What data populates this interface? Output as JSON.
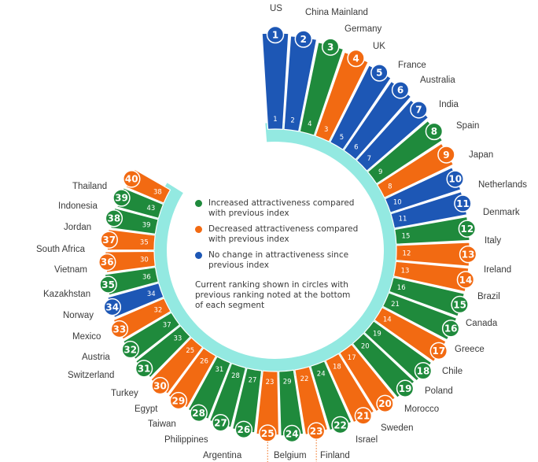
{
  "chart_data": {
    "type": "radial-bar",
    "colors": {
      "increased": "#1f8a3c",
      "decreased": "#f26a12",
      "no_change": "#1d57b5",
      "ring": "#93e9e1"
    },
    "legend": {
      "increased": "Increased attractiveness compared with previous index",
      "decreased": "Decreased attractiveness compared with previous index",
      "no_change": "No change in attractiveness since previous index",
      "note": "Current ranking shown in circles with previous ranking noted at the bottom of each segment"
    },
    "items": [
      {
        "rank": 1,
        "country": "US",
        "previous": 1,
        "status": "no_change"
      },
      {
        "rank": 2,
        "country": "China Mainland",
        "previous": 2,
        "status": "no_change"
      },
      {
        "rank": 3,
        "country": "Germany",
        "previous": 4,
        "status": "increased"
      },
      {
        "rank": 4,
        "country": "UK",
        "previous": 3,
        "status": "decreased"
      },
      {
        "rank": 5,
        "country": "France",
        "previous": 5,
        "status": "no_change"
      },
      {
        "rank": 6,
        "country": "Australia",
        "previous": 6,
        "status": "no_change"
      },
      {
        "rank": 7,
        "country": "India",
        "previous": 7,
        "status": "no_change"
      },
      {
        "rank": 8,
        "country": "Spain",
        "previous": 9,
        "status": "increased"
      },
      {
        "rank": 9,
        "country": "Japan",
        "previous": 8,
        "status": "decreased"
      },
      {
        "rank": 10,
        "country": "Netherlands",
        "previous": 10,
        "status": "no_change"
      },
      {
        "rank": 11,
        "country": "Denmark",
        "previous": 11,
        "status": "no_change"
      },
      {
        "rank": 12,
        "country": "Italy",
        "previous": 15,
        "status": "increased"
      },
      {
        "rank": 13,
        "country": "Ireland",
        "previous": 12,
        "status": "decreased"
      },
      {
        "rank": 14,
        "country": "Brazil",
        "previous": 13,
        "status": "decreased"
      },
      {
        "rank": 15,
        "country": "Canada",
        "previous": 16,
        "status": "increased"
      },
      {
        "rank": 16,
        "country": "Greece",
        "previous": 21,
        "status": "increased"
      },
      {
        "rank": 17,
        "country": "Chile",
        "previous": 14,
        "status": "decreased"
      },
      {
        "rank": 18,
        "country": "Poland",
        "previous": 19,
        "status": "increased"
      },
      {
        "rank": 19,
        "country": "Morocco",
        "previous": 20,
        "status": "increased"
      },
      {
        "rank": 20,
        "country": "Sweden",
        "previous": 17,
        "status": "decreased"
      },
      {
        "rank": 21,
        "country": "Israel",
        "previous": 18,
        "status": "decreased"
      },
      {
        "rank": 22,
        "country": "Finland",
        "previous": 24,
        "status": "increased"
      },
      {
        "rank": 23,
        "country": "",
        "previous": 22,
        "status": "decreased"
      },
      {
        "rank": 24,
        "country": "Belgium",
        "previous": 29,
        "status": "increased"
      },
      {
        "rank": 25,
        "country": "",
        "previous": 23,
        "status": "decreased"
      },
      {
        "rank": 26,
        "country": "Argentina",
        "previous": 27,
        "status": "increased"
      },
      {
        "rank": 27,
        "country": "Philippines",
        "previous": 28,
        "status": "increased"
      },
      {
        "rank": 28,
        "country": "Taiwan",
        "previous": 31,
        "status": "increased"
      },
      {
        "rank": 29,
        "country": "Egypt",
        "previous": 26,
        "status": "decreased"
      },
      {
        "rank": 30,
        "country": "Turkey",
        "previous": 25,
        "status": "decreased"
      },
      {
        "rank": 31,
        "country": "Switzerland",
        "previous": 33,
        "status": "increased"
      },
      {
        "rank": 32,
        "country": "Austria",
        "previous": 37,
        "status": "increased"
      },
      {
        "rank": 33,
        "country": "Mexico",
        "previous": 32,
        "status": "decreased"
      },
      {
        "rank": 34,
        "country": "Norway",
        "previous": 34,
        "status": "no_change"
      },
      {
        "rank": 35,
        "country": "Kazakhstan",
        "previous": 36,
        "status": "increased"
      },
      {
        "rank": 36,
        "country": "Vietnam",
        "previous": 30,
        "status": "decreased"
      },
      {
        "rank": 37,
        "country": "South Africa",
        "previous": 35,
        "status": "decreased"
      },
      {
        "rank": 38,
        "country": "Jordan",
        "previous": 39,
        "status": "increased"
      },
      {
        "rank": 39,
        "country": "Indonesia",
        "previous": 43,
        "status": "increased"
      },
      {
        "rank": 40,
        "country": "Thailand",
        "previous": 38,
        "status": "decreased"
      }
    ]
  }
}
